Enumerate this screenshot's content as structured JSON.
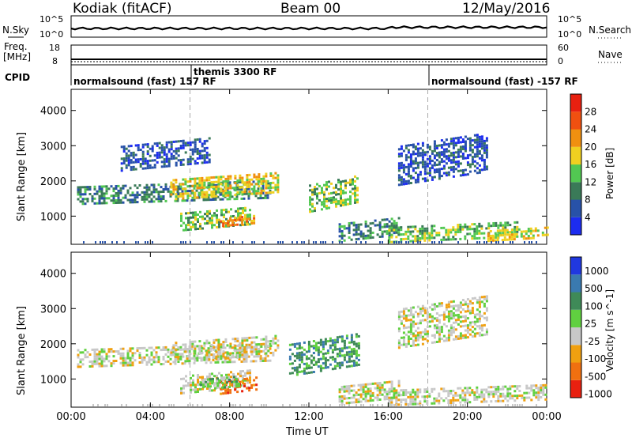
{
  "header": {
    "radar": "Kodiak (fitACF)",
    "beam": "Beam 00",
    "date": "12/May/2016"
  },
  "top_strips": {
    "nsky_label": "N.Sky",
    "nsky_ticks": [
      "10^5",
      "10^0"
    ],
    "nsearch_label": "N.Search",
    "nsearch_ticks": [
      "10^5",
      "10^0"
    ],
    "freq_label": "Freq.",
    "freq_unit": "[MHz]",
    "freq_ticks": [
      "18",
      "8"
    ],
    "nave_label": "Nave",
    "nave_ticks": [
      "60",
      "0"
    ],
    "cpid_label": "CPID",
    "cpid_segments": [
      {
        "text": "normalsound (fast) 157 RF"
      },
      {
        "text": "themis 3300 RF"
      },
      {
        "text": "normalsound (fast) -157 RF"
      }
    ]
  },
  "panels": {
    "slant_label": "Slant Range [km]",
    "power_label": "Power [dB]",
    "velocity_label": "Velocity [m s^-1]",
    "x_label": "Time UT"
  },
  "colors": {
    "power_scale": [
      "#1c2cf0",
      "#2852a8",
      "#3a7a58",
      "#52c852",
      "#f0d020",
      "#f09010",
      "#f05010",
      "#e82010"
    ],
    "velocity_scale": [
      "#2038e0",
      "#3a7ab0",
      "#3f8a58",
      "#60d040",
      "#c8c8c8",
      "#f0a010",
      "#f07010",
      "#e82010"
    ],
    "gray": "#c8c8c8"
  },
  "chart_data": [
    {
      "type": "heatmap",
      "title": "Power",
      "xlabel": "Time UT",
      "ylabel": "Slant Range [km]",
      "x_ticks": [
        "00:00",
        "04:00",
        "08:00",
        "12:00",
        "16:00",
        "20:00",
        "00:00"
      ],
      "x_range_hours": [
        0,
        24
      ],
      "y_ticks": [
        1000,
        2000,
        3000,
        4000
      ],
      "ylim": [
        200,
        4600
      ],
      "colorbar": {
        "label": "Power [dB]",
        "ticks": [
          4,
          8,
          12,
          16,
          20,
          24,
          28
        ],
        "range": [
          0,
          30
        ]
      },
      "bands": [
        {
          "t": [
            0.3,
            10.0
          ],
          "r": [
            1350,
            1850
          ],
          "level": 2
        },
        {
          "t": [
            5.0,
            10.5
          ],
          "r": [
            1450,
            2050
          ],
          "level": 4
        },
        {
          "t": [
            5.5,
            9.0
          ],
          "r": [
            600,
            1100
          ],
          "level": 3
        },
        {
          "t": [
            7.5,
            9.2
          ],
          "r": [
            700,
            950
          ],
          "level": 5
        },
        {
          "t": [
            2.5,
            7.0
          ],
          "r": [
            2300,
            3000
          ],
          "level": 1
        },
        {
          "t": [
            12.0,
            14.5
          ],
          "r": [
            1100,
            1900
          ],
          "level": 3
        },
        {
          "t": [
            13.5,
            16.5
          ],
          "r": [
            300,
            800
          ],
          "level": 2
        },
        {
          "t": [
            16.0,
            22.5
          ],
          "r": [
            250,
            700
          ],
          "level": 3
        },
        {
          "t": [
            16.5,
            21.0
          ],
          "r": [
            1900,
            3000
          ],
          "level": 1
        },
        {
          "t": [
            21.0,
            24.0
          ],
          "r": [
            300,
            600
          ],
          "level": 4
        }
      ]
    },
    {
      "type": "heatmap",
      "title": "Velocity",
      "xlabel": "Time UT",
      "ylabel": "Slant Range [km]",
      "x_ticks": [
        "00:00",
        "04:00",
        "08:00",
        "12:00",
        "16:00",
        "20:00",
        "00:00"
      ],
      "x_range_hours": [
        0,
        24
      ],
      "y_ticks": [
        1000,
        2000,
        3000,
        4000
      ],
      "ylim": [
        200,
        4600
      ],
      "colorbar": {
        "label": "Velocity [m s^-1]",
        "ticks": [
          "1000",
          "500",
          "100",
          "25",
          "-25",
          "-100",
          "-500",
          "-1000"
        ]
      },
      "bands": [
        {
          "t": [
            0.3,
            10.0
          ],
          "r": [
            1350,
            1850
          ],
          "level": 4
        },
        {
          "t": [
            5.0,
            10.5
          ],
          "r": [
            1450,
            2050
          ],
          "level": 4
        },
        {
          "t": [
            5.5,
            9.0
          ],
          "r": [
            600,
            1100
          ],
          "level": 4
        },
        {
          "t": [
            7.5,
            9.3
          ],
          "r": [
            600,
            950
          ],
          "level": 6
        },
        {
          "t": [
            6.5,
            8.5
          ],
          "r": [
            700,
            1000
          ],
          "level": 3
        },
        {
          "t": [
            11.0,
            14.5
          ],
          "r": [
            1100,
            2000
          ],
          "level": 2
        },
        {
          "t": [
            13.5,
            16.5
          ],
          "r": [
            300,
            800
          ],
          "level": 4
        },
        {
          "t": [
            16.0,
            24.0
          ],
          "r": [
            250,
            700
          ],
          "level": 4
        },
        {
          "t": [
            16.5,
            21.0
          ],
          "r": [
            1900,
            3000
          ],
          "level": 4
        }
      ]
    }
  ]
}
